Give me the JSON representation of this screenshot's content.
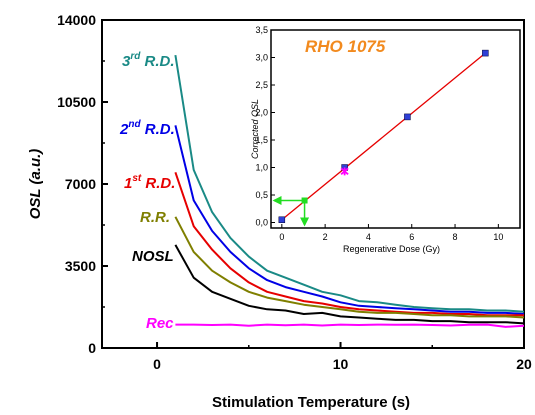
{
  "chart_data": [
    {
      "type": "line",
      "xlabel": "Stimulation Temperature (s)",
      "ylabel": "OSL (a.u.)",
      "xlim": [
        -3,
        20
      ],
      "ylim": [
        0,
        14000
      ],
      "x_ticks": [
        "0",
        "10",
        "20"
      ],
      "y_ticks": [
        "0",
        "3500",
        "7000",
        "10500",
        "14000"
      ],
      "grid": false,
      "series": [
        {
          "name": "3rd R.D.",
          "label_base": "3",
          "label_sup": "rd",
          "label_tail": " R.D.",
          "color": "#1a8a86",
          "x": [
            1,
            2,
            3,
            4,
            5,
            6,
            7,
            8,
            9,
            10,
            11,
            12,
            13,
            14,
            15,
            16,
            17,
            18,
            19,
            20
          ],
          "y": [
            12500,
            7600,
            5800,
            4700,
            3900,
            3300,
            3000,
            2700,
            2400,
            2250,
            2000,
            1950,
            1850,
            1750,
            1700,
            1650,
            1650,
            1600,
            1600,
            1550
          ]
        },
        {
          "name": "2nd R.D.",
          "label_base": "2",
          "label_sup": "nd",
          "label_tail": " R.D.",
          "color": "#0000e6",
          "x": [
            1,
            2,
            3,
            4,
            5,
            6,
            7,
            8,
            9,
            10,
            11,
            12,
            13,
            14,
            15,
            16,
            17,
            18,
            19,
            20
          ],
          "y": [
            9500,
            6300,
            5000,
            4100,
            3400,
            2900,
            2600,
            2400,
            2200,
            1950,
            1800,
            1750,
            1700,
            1650,
            1600,
            1550,
            1550,
            1500,
            1500,
            1450
          ]
        },
        {
          "name": "1st R.D.",
          "label_base": "1",
          "label_sup": "st",
          "label_tail": " R.D.",
          "color": "#e60000",
          "x": [
            1,
            2,
            3,
            4,
            5,
            6,
            7,
            8,
            9,
            10,
            11,
            12,
            13,
            14,
            15,
            16,
            17,
            18,
            19,
            20
          ],
          "y": [
            7500,
            5200,
            4200,
            3400,
            2800,
            2400,
            2200,
            2000,
            1900,
            1750,
            1650,
            1600,
            1550,
            1500,
            1500,
            1450,
            1450,
            1400,
            1400,
            1400
          ]
        },
        {
          "name": "R.R.",
          "label_base": "R.R.",
          "label_sup": "",
          "label_tail": "",
          "color": "#7f7f00",
          "x": [
            1,
            2,
            3,
            4,
            5,
            6,
            7,
            8,
            9,
            10,
            11,
            12,
            13,
            14,
            15,
            16,
            17,
            18,
            19,
            20
          ],
          "y": [
            5600,
            4100,
            3300,
            2800,
            2400,
            2150,
            2000,
            1850,
            1750,
            1650,
            1550,
            1500,
            1500,
            1450,
            1400,
            1400,
            1350,
            1350,
            1350,
            1300
          ]
        },
        {
          "name": "NOSL",
          "label_base": "NOSL",
          "label_sup": "",
          "label_tail": "",
          "color": "#000000",
          "x": [
            1,
            2,
            3,
            4,
            5,
            6,
            7,
            8,
            9,
            10,
            11,
            12,
            13,
            14,
            15,
            16,
            17,
            18,
            19,
            20
          ],
          "y": [
            4400,
            3000,
            2400,
            2100,
            1800,
            1650,
            1600,
            1450,
            1500,
            1350,
            1300,
            1250,
            1200,
            1200,
            1150,
            1150,
            1100,
            1100,
            1100,
            1050
          ]
        },
        {
          "name": "Rec",
          "label_base": "Rec",
          "label_sup": "",
          "label_tail": "",
          "color": "#ff00ff",
          "x": [
            1,
            2,
            3,
            4,
            5,
            6,
            7,
            8,
            9,
            10,
            11,
            12,
            13,
            14,
            15,
            16,
            17,
            18,
            19,
            20
          ],
          "y": [
            1000,
            1000,
            980,
            1000,
            950,
            1000,
            970,
            1000,
            960,
            1000,
            980,
            1000,
            990,
            1000,
            980,
            960,
            990,
            1000,
            900,
            950
          ]
        }
      ]
    },
    {
      "type": "scatter",
      "title": "RHO 1075",
      "xlabel": "Regenerative Dose (Gy)",
      "ylabel": "Corrected OSL",
      "xlim": [
        -0.5,
        11
      ],
      "ylim": [
        -0.1,
        3.5
      ],
      "x_ticks": [
        "0",
        "2",
        "4",
        "6",
        "8",
        "10"
      ],
      "y_ticks": [
        "0,0",
        "0,5",
        "1,0",
        "1,5",
        "2,0",
        "2,5",
        "3,0",
        "3,5"
      ],
      "points": {
        "x": [
          0,
          2.9,
          5.8,
          9.4
        ],
        "y": [
          0.05,
          1.0,
          1.92,
          3.08
        ]
      },
      "natural_point": {
        "x": 2.9,
        "y": 0.93
      },
      "fit_line": {
        "x": [
          0,
          9.4
        ],
        "y": [
          0.05,
          3.08
        ]
      },
      "interpolation": {
        "x": 1.05,
        "y": 0.4
      }
    }
  ]
}
